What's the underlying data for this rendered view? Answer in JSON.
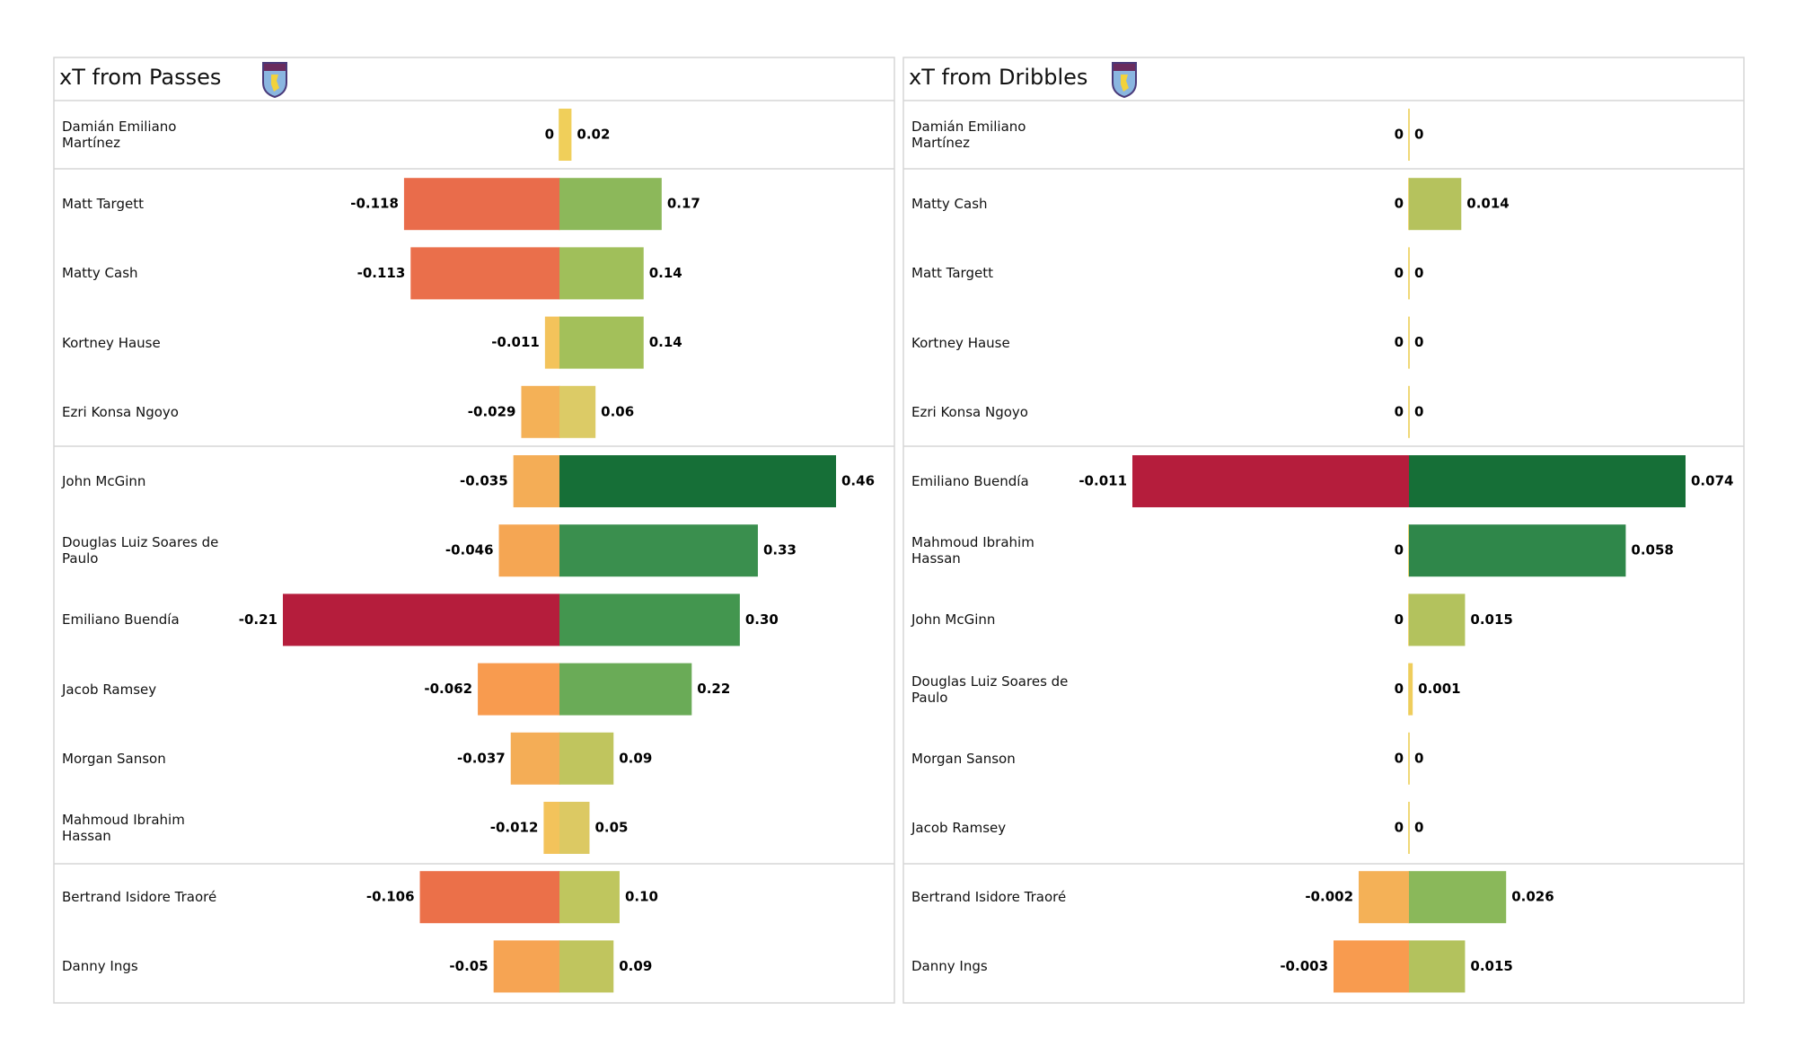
{
  "chart_data": [
    {
      "type": "bar",
      "title": "xT from Passes",
      "categories": [
        "Damián Emiliano Martínez",
        "Matt Targett",
        "Matty Cash",
        "Kortney Hause",
        "Ezri Konsa Ngoyo",
        "John McGinn",
        "Douglas Luiz Soares de Paulo",
        "Emiliano Buendía",
        "Jacob Ramsey",
        "Morgan Sanson",
        "Mahmoud Ibrahim Hassan",
        "Bertrand Isidore Traoré",
        "Danny Ings"
      ],
      "xlim": [
        -0.21,
        0.46
      ],
      "series": [
        {
          "values": [
            0,
            -0.118,
            -0.113,
            -0.011,
            -0.029,
            -0.035,
            -0.046,
            -0.21,
            -0.062,
            -0.037,
            -0.012,
            -0.106,
            -0.05
          ],
          "colors": [
            "#f0cf5a",
            "#e96c4b",
            "#ea6f4b",
            "#f3c35b",
            "#f4b157",
            "#f4ad56",
            "#f5a653",
            "#b51d3c",
            "#f89b4f",
            "#f4ad56",
            "#f3c35b",
            "#eb7049",
            "#f6a453"
          ]
        },
        {
          "values": [
            0.02,
            0.17,
            0.14,
            0.14,
            0.06,
            0.46,
            0.33,
            0.3,
            0.22,
            0.09,
            0.05,
            0.1,
            0.09
          ],
          "value_labels": [
            "0.02",
            "0.17",
            "0.14",
            "0.14",
            "0.06",
            "0.46",
            "0.33",
            "0.30",
            "0.22",
            "0.09",
            "0.05",
            "0.10",
            "0.09"
          ],
          "colors": [
            "#f0cf5a",
            "#8cb85a",
            "#a0bf5a",
            "#a3c05a",
            "#dccb66",
            "#166f37",
            "#3a8f4e",
            "#43964f",
            "#6aab57",
            "#c0c55e",
            "#dcc963",
            "#bfc65e",
            "#c0c55e"
          ]
        }
      ]
    },
    {
      "type": "bar",
      "title": "xT from Dribbles",
      "categories": [
        "Damián Emiliano Martínez",
        "Matty Cash",
        "Matt Targett",
        "Kortney Hause",
        "Ezri Konsa Ngoyo",
        "Emiliano Buendía",
        "Mahmoud Ibrahim Hassan",
        "John McGinn",
        "Douglas Luiz Soares de Paulo",
        "Morgan Sanson",
        "Jacob Ramsey",
        "Bertrand Isidore Traoré",
        "Danny Ings"
      ],
      "xlim": [
        -0.011,
        0.074
      ],
      "series": [
        {
          "values": [
            0,
            0,
            0,
            0,
            0,
            -0.011,
            0,
            0,
            0,
            0,
            0,
            -0.002,
            -0.003
          ],
          "colors": [
            "#f0d060",
            "#f0d060",
            "#f0d060",
            "#f0d060",
            "#f0d060",
            "#b51d3c",
            "#f0d060",
            "#f0d060",
            "#f0d060",
            "#f0d060",
            "#f0d060",
            "#f4b157",
            "#f89b4f"
          ]
        },
        {
          "values": [
            0,
            0.014,
            0,
            0,
            0,
            0.074,
            0.058,
            0.015,
            0.001,
            0,
            0,
            0.026,
            0.015
          ],
          "colors": [
            "#f0d060",
            "#b5c25d",
            "#f0d060",
            "#f0d060",
            "#f0d060",
            "#166f37",
            "#2f874a",
            "#b3c25d",
            "#efcd5c",
            "#f0d060",
            "#f0d060",
            "#8ab85a",
            "#b3c25d"
          ]
        }
      ]
    }
  ]
}
